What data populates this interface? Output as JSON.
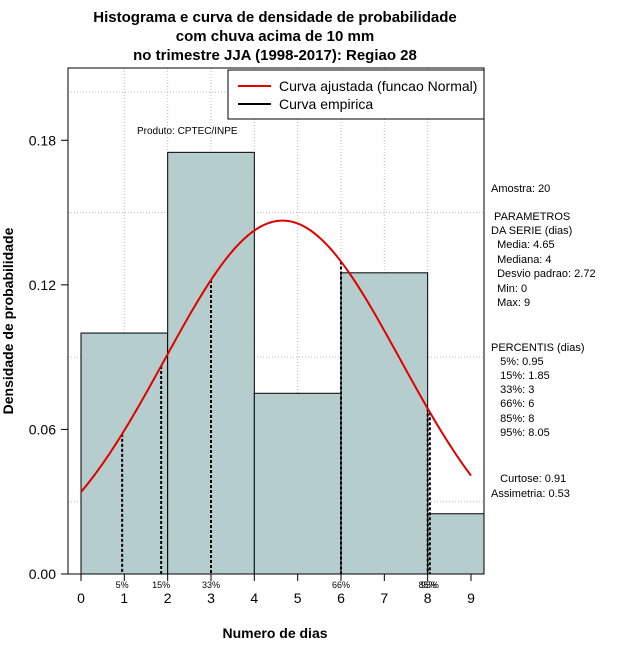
{
  "chart_data": {
    "type": "bar",
    "title": [
      "Histograma e curva de densidade de probabilidade",
      "com chuva acima de 10 mm",
      "no trimestre JJA (1998-2017): Regiao 28"
    ],
    "xlabel": "Numero de dias",
    "ylabel": "Densidade de probabilidade",
    "credit": "Produto: CPTEC/INPE",
    "xlim": [
      -0.3,
      9.3
    ],
    "ylim": [
      0,
      0.21
    ],
    "x_ticks": [
      0,
      1,
      2,
      3,
      4,
      5,
      6,
      7,
      8,
      9
    ],
    "y_ticks": [
      0.0,
      0.06,
      0.12,
      0.18
    ],
    "y_tick_labels": [
      "0.00",
      "0.06",
      "0.12",
      "0.18"
    ],
    "bins": [
      {
        "from": 0,
        "to": 2,
        "density": 0.1
      },
      {
        "from": 2,
        "to": 4,
        "density": 0.175
      },
      {
        "from": 4,
        "to": 6,
        "density": 0.075
      },
      {
        "from": 6,
        "to": 8,
        "density": 0.125
      },
      {
        "from": 8,
        "to": 10,
        "density": 0.025
      }
    ],
    "bar_color": "#b5cdcd",
    "curve_color": "#e00000",
    "normal_fit": {
      "mean": 4.65,
      "sd": 2.72
    },
    "percentile_markers": [
      {
        "label": "5%",
        "x": 0.95
      },
      {
        "label": "15%",
        "x": 1.85
      },
      {
        "label": "33%",
        "x": 3
      },
      {
        "label": "66%",
        "x": 6
      },
      {
        "label": "85%",
        "x": 8
      },
      {
        "label": "95%",
        "x": 8.05
      }
    ],
    "legend": {
      "position": "top-right",
      "entries": [
        {
          "label": "Curva ajustada (funcao Normal)",
          "color": "#e00000"
        },
        {
          "label": "Curva empirica",
          "color": "#000000"
        }
      ]
    },
    "grid": true
  },
  "stats": {
    "amostra": "Amostra: 20",
    "parametros_title": " PARAMETROS",
    "parametros_sub": "DA SERIE (dias)",
    "media": "  Media: 4.65",
    "mediana": "  Mediana: 4",
    "desvio": "  Desvio padrao: 2.72",
    "min": "  Min: 0",
    "max": "  Max: 9",
    "percentis_title": "PERCENTIS (dias)",
    "p5": "   5%: 0.95",
    "p15": "   15%: 1.85",
    "p33": "   33%: 3",
    "p66": "   66%: 6",
    "p85": "   85%: 8",
    "p95": "   95%: 8.05",
    "curtose": "   Curtose: 0.91",
    "assimetria": "Assimetria: 0.53"
  }
}
